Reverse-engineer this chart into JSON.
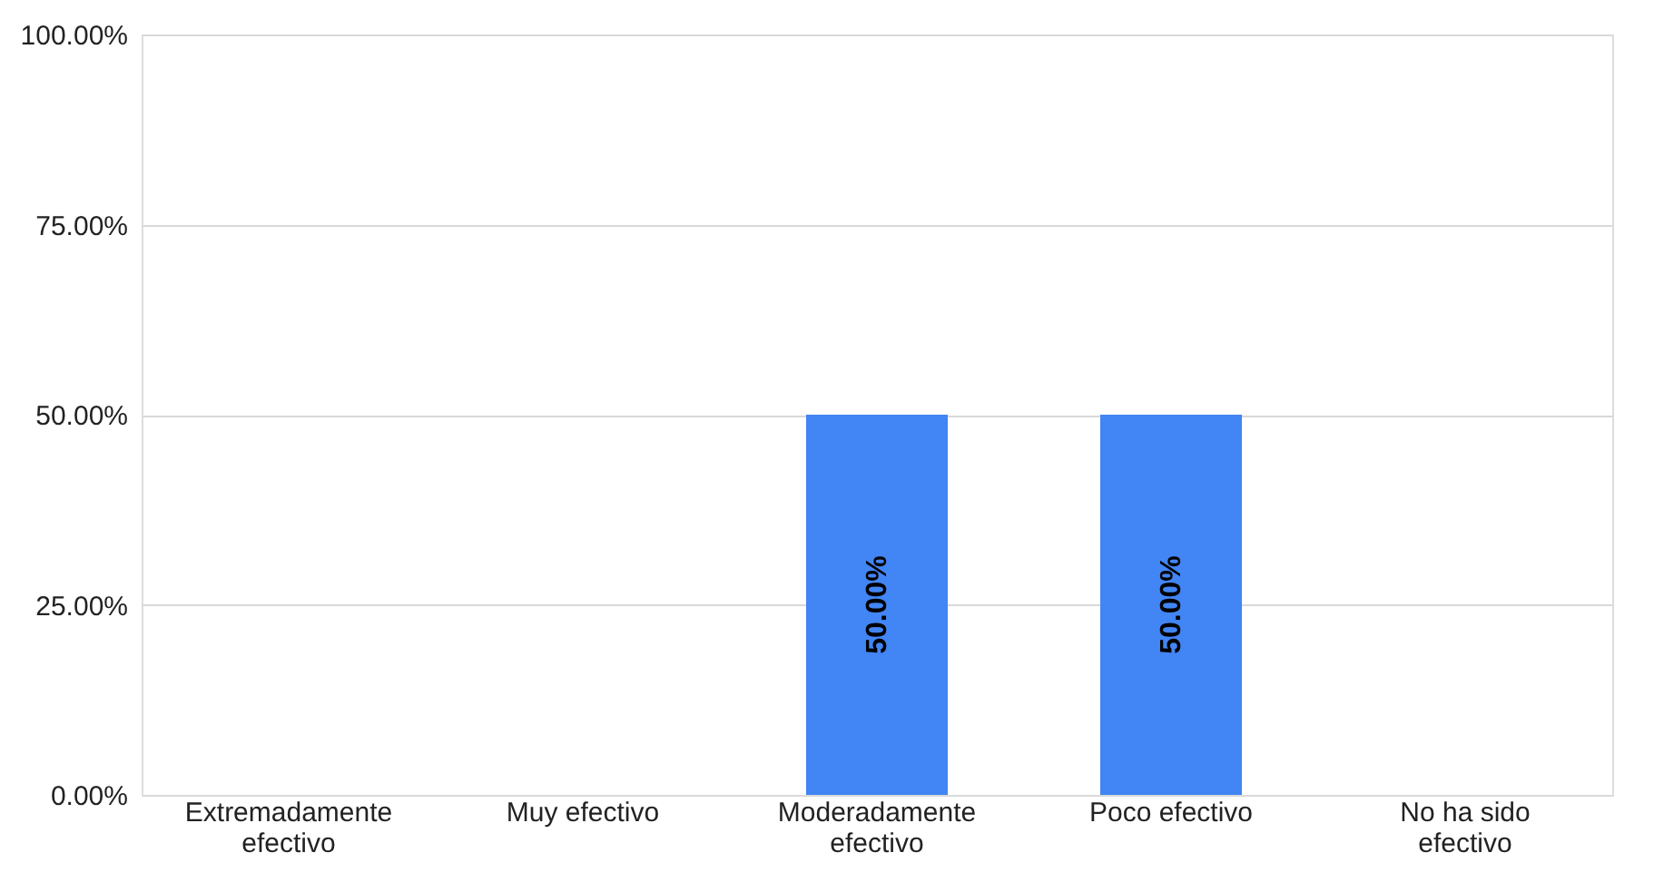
{
  "chart_data": {
    "type": "bar",
    "categories": [
      "Extremadamente efectivo",
      "Muy efectivo",
      "Moderadamente efectivo",
      "Poco efectivo",
      "No ha sido efectivo"
    ],
    "values": [
      0,
      0,
      50,
      50,
      0
    ],
    "color": "#4285f4",
    "value_labels": [
      null,
      null,
      "50.00%",
      "50.00%",
      null
    ],
    "ylim": [
      0,
      100
    ],
    "yticks": [
      {
        "value": 0,
        "label": "0.00%"
      },
      {
        "value": 25,
        "label": "25.00%"
      },
      {
        "value": 50,
        "label": "50.00%"
      },
      {
        "value": 75,
        "label": "75.00%"
      },
      {
        "value": 100,
        "label": "100.00%"
      }
    ],
    "grid": "y"
  }
}
